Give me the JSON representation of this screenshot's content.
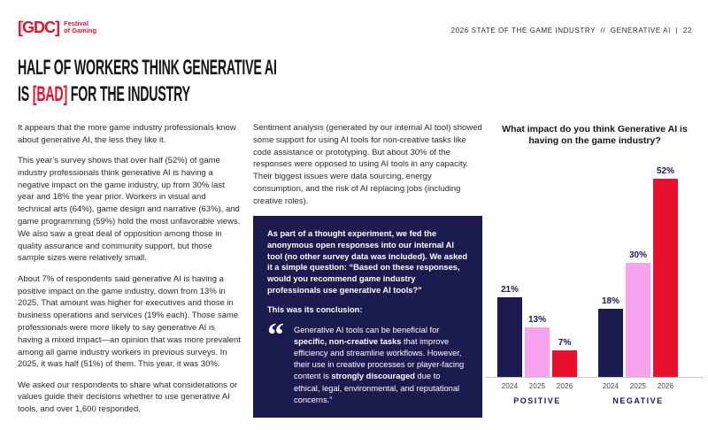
{
  "header": {
    "logo": {
      "brand": "[GDC]",
      "sub_line1": "Festival",
      "sub_line2": "of Gaming",
      "brand_color": "#e8112d"
    },
    "meta": "2026 STATE OF THE GAME INDUSTRY  //  GENERATIVE AI  |  22"
  },
  "title": {
    "line1": "HALF OF WORKERS THINK GENERATIVE AI",
    "line2_prefix": "IS ",
    "line2_highlight": "[BAD]",
    "line2_suffix": " FOR THE INDUSTRY",
    "highlight_color": "#e8112d"
  },
  "columns": {
    "left": {
      "paragraphs": [
        "It appears that the more game industry professionals know about generative AI, the less they like it.",
        "This year’s survey shows that over half (52%) of game industry professionals think generative AI is having a negative impact on the game industry, up from 30% last year and 18% the year prior. Workers in visual and technical arts (64%), game design and narrative (63%), and game programming (59%) hold the most unfavorable views. We also saw a great deal of opposition among those in quality assurance and community support, but those sample sizes were relatively small.",
        "About 7% of respondents said generative AI is having a positive impact on the game industry, down from 13% in 2025. That amount was higher for executives and those in business operations and services (19% each). Those same professionals were more likely to say generative AI is having a mixed impact—an opinion that was more prevalent among all game industry workers in previous surveys. In 2025, it was half (51%) of them. This year, it was 30%.",
        "We asked our respondents to share what considerations or values guide their decisions whether to use generative AI tools, and over 1,600 responded."
      ]
    },
    "middle": {
      "paragraphs": [
        "Sentiment analysis (generated by our internal AI tool) showed some support for using AI tools for non-creative tasks like code assistance or prototyping. But about 30% of the responses were opposed to using AI tools in any capacity. Their biggest issues were data sourcing, energy consumption, and the risk of AI replacing jobs (including creative roles)."
      ]
    }
  },
  "quote_box": {
    "bg_color": "#1b1b4f",
    "intro": "As part of a thought experiment, we fed the anonymous open responses into our internal AI tool (no other survey data was included). We asked it a simple question: “Based on these responses, would you recommend game industry professionals use generative AI tools?”",
    "conclusion_label": "This was its conclusion:",
    "quote_icon": "“",
    "quote_segments": [
      {
        "t": "Generative AI tools can be beneficial for ",
        "b": false
      },
      {
        "t": "specific, non-creative tasks",
        "b": true
      },
      {
        "t": " that improve efficiency and streamline workflows. However, their use in creative processes or player-facing content is ",
        "b": false
      },
      {
        "t": "strongly discouraged",
        "b": true
      },
      {
        "t": " due to ethical, legal, environmental, and reputational concerns.”",
        "b": false
      }
    ]
  },
  "chart_data": {
    "type": "bar",
    "title": "What impact do you think Generative AI is having on the game industry?",
    "categories": [
      "POSITIVE",
      "NEGATIVE"
    ],
    "x_labels": [
      "2024",
      "2025",
      "2026"
    ],
    "series": [
      {
        "name": "POSITIVE",
        "values": [
          21,
          13,
          7
        ]
      },
      {
        "name": "NEGATIVE",
        "values": [
          18,
          30,
          52
        ]
      }
    ],
    "value_suffix": "%",
    "bar_colors": [
      "#1b1b4f",
      "#f7a3ee",
      "#e8112d"
    ],
    "value_label_color": "#1b1b4f",
    "ylabel": "",
    "xlabel": "",
    "ylim": [
      0,
      55
    ],
    "grid": false,
    "legend_position": "none"
  }
}
